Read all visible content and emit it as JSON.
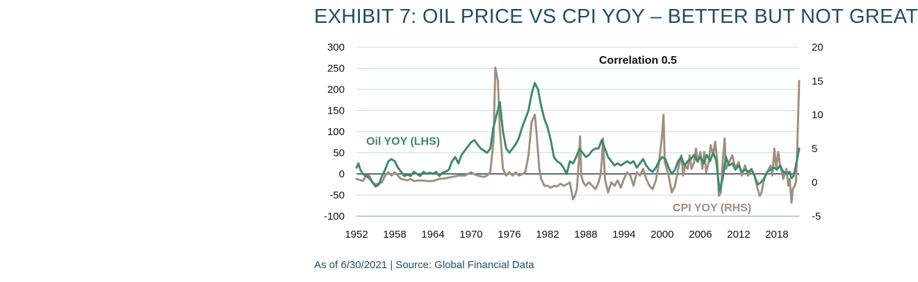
{
  "title": "EXHIBIT 7: OIL PRICE VS CPI YOY – BETTER BUT NOT GREAT",
  "source": "As of 6/30/2021 | Source: Global Financial Data",
  "colors": {
    "oil": "#3d8a6e",
    "cpi": "#a08f7e",
    "title": "#1f4e63",
    "grid": "#c7dbe3",
    "zero": "#243a4f"
  },
  "chart_data": {
    "type": "line",
    "annotation": "Correlation 0.5",
    "grid": true,
    "xlim": [
      1952,
      2021.5
    ],
    "x_ticks": [
      "1952",
      "1958",
      "1964",
      "1970",
      "1976",
      "1982",
      "1988",
      "1994",
      "2000",
      "2006",
      "2012",
      "2018"
    ],
    "y_left": {
      "lim": [
        -100,
        300
      ],
      "ticks": [
        "300",
        "250",
        "200",
        "150",
        "100",
        "50",
        "0",
        "-50",
        "-100"
      ]
    },
    "y_right": {
      "lim": [
        -5,
        20
      ],
      "ticks": [
        "20",
        "15",
        "10",
        "5",
        "0",
        "-5"
      ]
    },
    "series": [
      {
        "name": "Oil YOY (LHS)",
        "axis": "left",
        "points": [
          [
            1952.0,
            15
          ],
          [
            1952.3,
            25
          ],
          [
            1952.6,
            10
          ],
          [
            1953.0,
            0
          ],
          [
            1953.5,
            -5
          ],
          [
            1954.0,
            -10
          ],
          [
            1954.5,
            -20
          ],
          [
            1955.0,
            -30
          ],
          [
            1955.5,
            -25
          ],
          [
            1956.0,
            -5
          ],
          [
            1956.5,
            10
          ],
          [
            1957.0,
            30
          ],
          [
            1957.5,
            35
          ],
          [
            1958.0,
            30
          ],
          [
            1958.5,
            15
          ],
          [
            1959.0,
            5
          ],
          [
            1959.5,
            -5
          ],
          [
            1960.0,
            -2
          ],
          [
            1960.5,
            -5
          ],
          [
            1961.0,
            5
          ],
          [
            1961.5,
            0
          ],
          [
            1962.0,
            -5
          ],
          [
            1962.5,
            5
          ],
          [
            1963.0,
            0
          ],
          [
            1963.5,
            3
          ],
          [
            1964.0,
            0
          ],
          [
            1964.5,
            5
          ],
          [
            1965.0,
            -5
          ],
          [
            1965.5,
            3
          ],
          [
            1966.0,
            5
          ],
          [
            1966.5,
            10
          ],
          [
            1967.0,
            30
          ],
          [
            1967.5,
            40
          ],
          [
            1968.0,
            25
          ],
          [
            1968.5,
            45
          ],
          [
            1969.0,
            55
          ],
          [
            1969.5,
            65
          ],
          [
            1970.0,
            75
          ],
          [
            1970.5,
            80
          ],
          [
            1971.0,
            70
          ],
          [
            1971.5,
            60
          ],
          [
            1972.0,
            55
          ],
          [
            1972.5,
            50
          ],
          [
            1973.0,
            60
          ],
          [
            1973.5,
            110
          ],
          [
            1974.0,
            140
          ],
          [
            1974.5,
            170
          ],
          [
            1975.0,
            100
          ],
          [
            1975.5,
            60
          ],
          [
            1976.0,
            50
          ],
          [
            1976.5,
            60
          ],
          [
            1977.0,
            70
          ],
          [
            1977.5,
            85
          ],
          [
            1978.0,
            110
          ],
          [
            1978.5,
            130
          ],
          [
            1979.0,
            150
          ],
          [
            1979.5,
            190
          ],
          [
            1980.0,
            215
          ],
          [
            1980.5,
            200
          ],
          [
            1981.0,
            160
          ],
          [
            1981.5,
            130
          ],
          [
            1982.0,
            110
          ],
          [
            1982.5,
            80
          ],
          [
            1983.0,
            40
          ],
          [
            1983.5,
            30
          ],
          [
            1984.0,
            25
          ],
          [
            1984.5,
            15
          ],
          [
            1985.0,
            0
          ],
          [
            1985.5,
            30
          ],
          [
            1986.0,
            25
          ],
          [
            1986.5,
            40
          ],
          [
            1987.0,
            60
          ],
          [
            1987.5,
            50
          ],
          [
            1988.0,
            40
          ],
          [
            1988.5,
            45
          ],
          [
            1989.0,
            55
          ],
          [
            1989.5,
            60
          ],
          [
            1990.0,
            60
          ],
          [
            1990.5,
            80
          ],
          [
            1991.0,
            60
          ],
          [
            1991.5,
            40
          ],
          [
            1992.0,
            30
          ],
          [
            1992.5,
            20
          ],
          [
            1993.0,
            25
          ],
          [
            1993.5,
            20
          ],
          [
            1994.0,
            25
          ],
          [
            1994.5,
            30
          ],
          [
            1995.0,
            25
          ],
          [
            1995.5,
            30
          ],
          [
            1996.0,
            15
          ],
          [
            1996.5,
            25
          ],
          [
            1997.0,
            35
          ],
          [
            1997.5,
            20
          ],
          [
            1998.0,
            10
          ],
          [
            1998.5,
            5
          ],
          [
            1999.0,
            15
          ],
          [
            1999.5,
            30
          ],
          [
            2000.0,
            40
          ],
          [
            2000.5,
            35
          ],
          [
            2001.0,
            15
          ],
          [
            2001.5,
            0
          ],
          [
            2002.0,
            10
          ],
          [
            2002.5,
            30
          ],
          [
            2003.0,
            40
          ],
          [
            2003.5,
            20
          ],
          [
            2004.0,
            30
          ],
          [
            2004.5,
            35
          ],
          [
            2005.0,
            45
          ],
          [
            2005.5,
            30
          ],
          [
            2006.0,
            40
          ],
          [
            2006.5,
            25
          ],
          [
            2007.0,
            45
          ],
          [
            2007.5,
            30
          ],
          [
            2008.0,
            50
          ],
          [
            2008.5,
            30
          ],
          [
            2009.0,
            -40
          ],
          [
            2009.5,
            -10
          ],
          [
            2010.0,
            40
          ],
          [
            2010.5,
            20
          ],
          [
            2011.0,
            25
          ],
          [
            2011.5,
            10
          ],
          [
            2012.0,
            20
          ],
          [
            2012.5,
            5
          ],
          [
            2013.0,
            10
          ],
          [
            2013.5,
            5
          ],
          [
            2014.0,
            10
          ],
          [
            2014.5,
            -5
          ],
          [
            2015.0,
            -25
          ],
          [
            2015.5,
            -20
          ],
          [
            2016.0,
            -10
          ],
          [
            2016.5,
            5
          ],
          [
            2017.0,
            10
          ],
          [
            2017.5,
            15
          ],
          [
            2018.0,
            10
          ],
          [
            2018.5,
            20
          ],
          [
            2019.0,
            5
          ],
          [
            2019.5,
            0
          ],
          [
            2020.0,
            5
          ],
          [
            2020.3,
            -10
          ],
          [
            2020.6,
            -5
          ],
          [
            2021.0,
            20
          ],
          [
            2021.5,
            60
          ]
        ]
      },
      {
        "name": "CPI YOY (RHS)",
        "axis": "right",
        "points": [
          [
            1952.0,
            0.5
          ],
          [
            1953.0,
            0.2
          ],
          [
            1953.5,
            1.0
          ],
          [
            1954.0,
            1.0
          ],
          [
            1954.5,
            0.0
          ],
          [
            1955.0,
            -0.3
          ],
          [
            1956.0,
            0.0
          ],
          [
            1956.5,
            1.0
          ],
          [
            1957.0,
            1.5
          ],
          [
            1957.5,
            1.0
          ],
          [
            1958.0,
            1.5
          ],
          [
            1958.5,
            1.0
          ],
          [
            1959.0,
            0.5
          ],
          [
            1960.0,
            0.3
          ],
          [
            1960.5,
            0.5
          ],
          [
            1961.0,
            0.2
          ],
          [
            1962.0,
            0.3
          ],
          [
            1963.0,
            0.2
          ],
          [
            1964.0,
            0.2
          ],
          [
            1965.0,
            0.5
          ],
          [
            1966.0,
            0.6
          ],
          [
            1967.0,
            0.8
          ],
          [
            1968.0,
            1.0
          ],
          [
            1969.0,
            1.0
          ],
          [
            1970.0,
            1.5
          ],
          [
            1970.5,
            1.2
          ],
          [
            1971.0,
            1.0
          ],
          [
            1972.0,
            0.8
          ],
          [
            1972.5,
            1.0
          ],
          [
            1973.0,
            1.5
          ],
          [
            1973.5,
            6
          ],
          [
            1973.8,
            17
          ],
          [
            1974.2,
            15
          ],
          [
            1974.5,
            8
          ],
          [
            1975.0,
            2
          ],
          [
            1975.5,
            1
          ],
          [
            1976.0,
            1.5
          ],
          [
            1976.5,
            1
          ],
          [
            1977.0,
            1.5
          ],
          [
            1977.5,
            1
          ],
          [
            1978.0,
            1.2
          ],
          [
            1978.5,
            1.5
          ],
          [
            1979.0,
            4
          ],
          [
            1979.5,
            9
          ],
          [
            1980.0,
            10
          ],
          [
            1980.3,
            7
          ],
          [
            1980.7,
            2
          ],
          [
            1981.0,
            0.5
          ],
          [
            1981.5,
            -0.5
          ],
          [
            1982.0,
            -0.5
          ],
          [
            1982.5,
            -0.8
          ],
          [
            1983.0,
            -0.5
          ],
          [
            1983.5,
            -0.6
          ],
          [
            1984.0,
            -0.2
          ],
          [
            1984.5,
            -0.5
          ],
          [
            1985.0,
            -0.3
          ],
          [
            1985.5,
            0
          ],
          [
            1986.0,
            -2.5
          ],
          [
            1986.3,
            -2.0
          ],
          [
            1986.6,
            -1.0
          ],
          [
            1986.9,
            3.0
          ],
          [
            1987.1,
            6.8
          ],
          [
            1987.3,
            1.0
          ],
          [
            1987.6,
            0
          ],
          [
            1988.0,
            -0.5
          ],
          [
            1988.5,
            0
          ],
          [
            1989.0,
            -0.5
          ],
          [
            1989.5,
            -1.0
          ],
          [
            1990.0,
            0
          ],
          [
            1990.3,
            1.0
          ],
          [
            1990.5,
            3.0
          ],
          [
            1990.7,
            6.5
          ],
          [
            1991.0,
            0.5
          ],
          [
            1991.5,
            -1.5
          ],
          [
            1992.0,
            0
          ],
          [
            1992.5,
            -0.5
          ],
          [
            1993.0,
            0.3
          ],
          [
            1993.5,
            -0.8
          ],
          [
            1994.0,
            0.5
          ],
          [
            1994.5,
            1.5
          ],
          [
            1995.0,
            1.0
          ],
          [
            1995.5,
            -0.5
          ],
          [
            1996.0,
            1.5
          ],
          [
            1996.5,
            1.0
          ],
          [
            1997.0,
            2.0
          ],
          [
            1997.5,
            0.5
          ],
          [
            1998.0,
            -0.5
          ],
          [
            1998.5,
            -1.0
          ],
          [
            1999.0,
            0.3
          ],
          [
            1999.5,
            3.0
          ],
          [
            1999.8,
            5.5
          ],
          [
            2000.0,
            7.0
          ],
          [
            2000.2,
            10.0
          ],
          [
            2000.4,
            3.0
          ],
          [
            2000.7,
            2.0
          ],
          [
            2001.0,
            1.0
          ],
          [
            2001.5,
            -1.5
          ],
          [
            2002.0,
            -0.5
          ],
          [
            2002.5,
            2.0
          ],
          [
            2003.0,
            4.0
          ],
          [
            2003.3,
            1.0
          ],
          [
            2003.6,
            2.5
          ],
          [
            2004.0,
            2.0
          ],
          [
            2004.3,
            4.0
          ],
          [
            2004.6,
            2.0
          ],
          [
            2005.0,
            3.0
          ],
          [
            2005.3,
            5.0
          ],
          [
            2005.6,
            3.0
          ],
          [
            2006.0,
            4.5
          ],
          [
            2006.3,
            2.0
          ],
          [
            2006.6,
            4.5
          ],
          [
            2006.9,
            1.5
          ],
          [
            2007.3,
            3.0
          ],
          [
            2007.6,
            5.5
          ],
          [
            2008.0,
            4.0
          ],
          [
            2008.3,
            6.0
          ],
          [
            2008.6,
            3.5
          ],
          [
            2008.9,
            -2.0
          ],
          [
            2009.2,
            -1.5
          ],
          [
            2009.5,
            3.0
          ],
          [
            2009.8,
            6.5
          ],
          [
            2010.0,
            2.0
          ],
          [
            2010.5,
            3.0
          ],
          [
            2011.0,
            4.0
          ],
          [
            2011.5,
            2.0
          ],
          [
            2012.0,
            3.0
          ],
          [
            2012.5,
            1.0
          ],
          [
            2013.0,
            2.5
          ],
          [
            2013.5,
            1.0
          ],
          [
            2014.0,
            2.0
          ],
          [
            2014.5,
            1.0
          ],
          [
            2015.0,
            -1.0
          ],
          [
            2015.3,
            -2.0
          ],
          [
            2015.6,
            -1.5
          ],
          [
            2016.0,
            0.5
          ],
          [
            2016.5,
            1.5
          ],
          [
            2017.0,
            2.5
          ],
          [
            2017.3,
            1.0
          ],
          [
            2017.6,
            5.0
          ],
          [
            2017.9,
            2.0
          ],
          [
            2018.2,
            4.5
          ],
          [
            2018.5,
            2.5
          ],
          [
            2018.8,
            1.5
          ],
          [
            2019.0,
            0.5
          ],
          [
            2019.5,
            2.0
          ],
          [
            2019.8,
            -0.5
          ],
          [
            2020.0,
            0.5
          ],
          [
            2020.3,
            -3.0
          ],
          [
            2020.5,
            -1.0
          ],
          [
            2020.8,
            -0.5
          ],
          [
            2021.0,
            0
          ],
          [
            2021.2,
            5.0
          ],
          [
            2021.35,
            10.0
          ],
          [
            2021.5,
            15.0
          ]
        ]
      }
    ]
  }
}
